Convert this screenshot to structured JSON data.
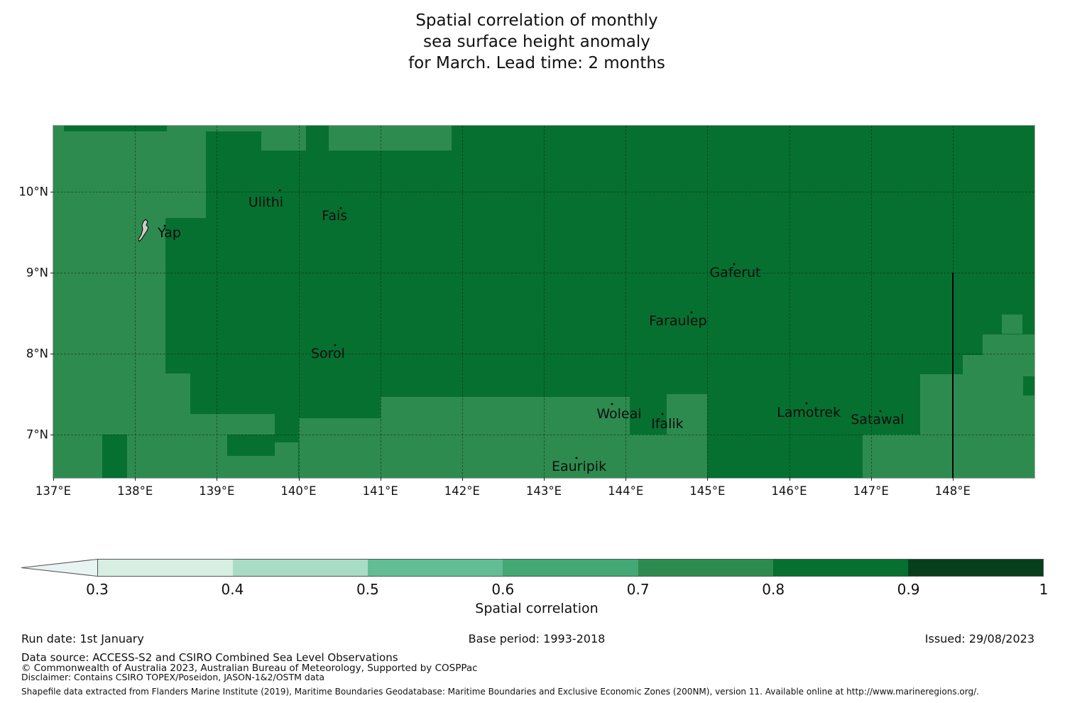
{
  "title": {
    "line1": "Spatial correlation of monthly",
    "line2": "sea surface height anomaly",
    "line3": "for March. Lead time: 2 months"
  },
  "footer": {
    "run_date": "Run date: 1st January",
    "base_period": "Base period: 1993-2018",
    "issued": "Issued: 29/08/2023",
    "data_source": "Data source: ACCESS-S2 and CSIRO Combined Sea Level Observations",
    "copyright": "© Commonwealth of Australia 2023, Australian Bureau of Meteorology, Supported by COSPPac",
    "disclaimer": "Disclaimer: Contains CSIRO TOPEX/Poseidon, JASON-1&2/OSTM data",
    "shapefile": "Shapefile data extracted from Flanders Marine Institute (2019), Maritime Boundaries Geodatabase: Maritime Boundaries and Exclusive Economic Zones (200NM), version 11. Available online at http://www.marineregions.org/."
  },
  "chart_data": {
    "type": "heatmap",
    "title": "Spatial correlation of monthly sea surface height anomaly for March. Lead time: 2 months",
    "lon_range": [
      137.0,
      149.0
    ],
    "lat_range": [
      6.46,
      10.82
    ],
    "x_ticks": [
      {
        "value": 137,
        "label": "137°E"
      },
      {
        "value": 138,
        "label": "138°E"
      },
      {
        "value": 139,
        "label": "139°E"
      },
      {
        "value": 140,
        "label": "140°E"
      },
      {
        "value": 141,
        "label": "141°E"
      },
      {
        "value": 142,
        "label": "142°E"
      },
      {
        "value": 143,
        "label": "143°E"
      },
      {
        "value": 144,
        "label": "144°E"
      },
      {
        "value": 145,
        "label": "145°E"
      },
      {
        "value": 146,
        "label": "146°E"
      },
      {
        "value": 147,
        "label": "147°E"
      },
      {
        "value": 148,
        "label": "148°E"
      }
    ],
    "y_ticks": [
      {
        "value": 7,
        "label": "7°N"
      },
      {
        "value": 8,
        "label": "8°N"
      },
      {
        "value": 9,
        "label": "9°N"
      },
      {
        "value": 10,
        "label": "10°N"
      }
    ],
    "grid_lons": [
      138,
      139,
      140,
      141,
      142,
      143,
      144,
      145,
      146,
      147,
      148
    ],
    "grid_lats": [
      7,
      8,
      9,
      10
    ],
    "base_band": {
      "range": "0.8-0.9",
      "color": "#067030"
    },
    "light_band": {
      "range": "0.7-0.8",
      "color": "#2e8b4f"
    },
    "light_rects": [
      [
        137.0,
        6.46,
        138.0,
        10.82
      ],
      [
        138.0,
        6.46,
        138.37,
        9.93
      ],
      [
        138.0,
        9.93,
        138.87,
        10.82
      ],
      [
        138.37,
        9.68,
        138.87,
        9.93
      ],
      [
        138.39,
        10.75,
        139.54,
        10.82
      ],
      [
        139.54,
        10.51,
        140.09,
        10.82
      ],
      [
        140.37,
        10.51,
        141.87,
        10.82
      ],
      [
        138.37,
        6.46,
        138.68,
        7.75
      ],
      [
        138.68,
        6.46,
        139.13,
        7.25
      ],
      [
        139.13,
        7.0,
        139.71,
        7.25
      ],
      [
        139.13,
        6.46,
        139.71,
        6.73
      ],
      [
        139.71,
        6.46,
        140.0,
        6.9
      ],
      [
        140.0,
        6.46,
        141.0,
        7.2
      ],
      [
        141.0,
        6.46,
        144.05,
        7.46
      ],
      [
        144.05,
        6.46,
        144.5,
        7.0
      ],
      [
        144.5,
        6.46,
        145.0,
        7.5
      ],
      [
        146.9,
        6.46,
        149.0,
        7.0
      ],
      [
        147.6,
        6.46,
        149.0,
        7.74
      ],
      [
        148.12,
        7.74,
        149.0,
        7.98
      ],
      [
        148.37,
        7.98,
        149.0,
        8.24
      ],
      [
        148.6,
        8.24,
        148.85,
        8.48
      ]
    ],
    "dark_rects": [
      [
        137.13,
        10.75,
        138.39,
        10.82
      ],
      [
        137.6,
        6.46,
        137.9,
        7.0
      ],
      [
        148.86,
        7.48,
        149.0,
        7.72
      ]
    ],
    "islands": [
      {
        "name": "Yap",
        "label_lon": 138.42,
        "label_lat": 9.49,
        "dot_lon": 138.36,
        "dot_lat": 9.58,
        "shape": true,
        "shape_lon": 138.12,
        "shape_lat": 9.5
      },
      {
        "name": "Ulithi",
        "label_lon": 139.6,
        "label_lat": 9.87,
        "dot_lon": 139.77,
        "dot_lat": 10.02
      },
      {
        "name": "Fais",
        "label_lon": 140.44,
        "label_lat": 9.7,
        "dot_lon": 140.52,
        "dot_lat": 9.8
      },
      {
        "name": "Gaferut",
        "label_lon": 145.34,
        "label_lat": 9.0,
        "dot_lon": 145.33,
        "dot_lat": 9.11
      },
      {
        "name": "Faraulep",
        "label_lon": 144.64,
        "label_lat": 8.4,
        "dot_lon": 144.81,
        "dot_lat": 8.51
      },
      {
        "name": "Sorol",
        "label_lon": 140.36,
        "label_lat": 8.0,
        "dot_lon": 140.45,
        "dot_lat": 8.1
      },
      {
        "name": "Woleai",
        "label_lon": 143.92,
        "label_lat": 7.25,
        "dot_lon": 143.83,
        "dot_lat": 7.37
      },
      {
        "name": "Ifalik",
        "label_lon": 144.51,
        "label_lat": 7.13,
        "dot_lon": 144.45,
        "dot_lat": 7.25
      },
      {
        "name": "Lamotrek",
        "label_lon": 146.24,
        "label_lat": 7.27,
        "dot_lon": 146.21,
        "dot_lat": 7.38
      },
      {
        "name": "Satawal",
        "label_lon": 147.08,
        "label_lat": 7.18,
        "dot_lon": 147.12,
        "dot_lat": 7.29
      },
      {
        "name": "Eauripik",
        "label_lon": 143.43,
        "label_lat": 6.6,
        "dot_lon": 143.4,
        "dot_lat": 6.71
      }
    ],
    "eez_line": {
      "lon": 148.0,
      "lat_top": 9.0,
      "lat_bottom": 6.46,
      "color": "#000000"
    },
    "colorbar": {
      "label": "Spatial correlation",
      "under_arrow_color": "#e8f4f2",
      "segments": [
        {
          "from": 0.3,
          "to": 0.4,
          "color": "#d7eee3"
        },
        {
          "from": 0.4,
          "to": 0.5,
          "color": "#a9dcc5"
        },
        {
          "from": 0.5,
          "to": 0.6,
          "color": "#63bd94"
        },
        {
          "from": 0.6,
          "to": 0.7,
          "color": "#43a873"
        },
        {
          "from": 0.7,
          "to": 0.8,
          "color": "#2e8b4f"
        },
        {
          "from": 0.8,
          "to": 0.9,
          "color": "#067030"
        },
        {
          "from": 0.9,
          "to": 1.0,
          "color": "#073f1d"
        }
      ],
      "tick_labels": [
        "0.3",
        "0.4",
        "0.5",
        "0.6",
        "0.7",
        "0.8",
        "0.9",
        "1"
      ]
    }
  }
}
